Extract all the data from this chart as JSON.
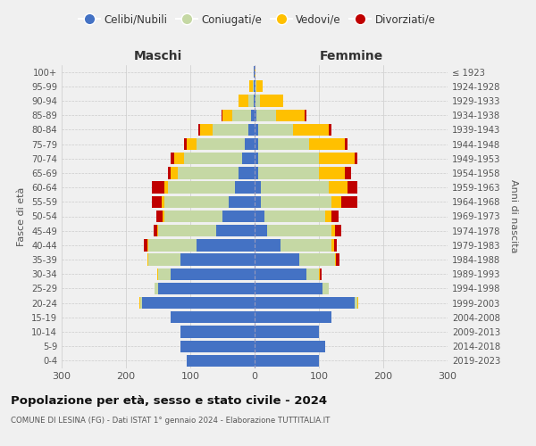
{
  "age_groups": [
    "0-4",
    "5-9",
    "10-14",
    "15-19",
    "20-24",
    "25-29",
    "30-34",
    "35-39",
    "40-44",
    "45-49",
    "50-54",
    "55-59",
    "60-64",
    "65-69",
    "70-74",
    "75-79",
    "80-84",
    "85-89",
    "90-94",
    "95-99",
    "100+"
  ],
  "birth_years": [
    "2019-2023",
    "2014-2018",
    "2009-2013",
    "2004-2008",
    "1999-2003",
    "1994-1998",
    "1989-1993",
    "1984-1988",
    "1979-1983",
    "1974-1978",
    "1969-1973",
    "1964-1968",
    "1959-1963",
    "1954-1958",
    "1949-1953",
    "1944-1948",
    "1939-1943",
    "1934-1938",
    "1929-1933",
    "1924-1928",
    "≤ 1923"
  ],
  "colors": {
    "celibe": "#4472c4",
    "coniugato": "#c5d8a4",
    "vedovo": "#ffc000",
    "divorziato": "#c00000"
  },
  "maschi": {
    "celibe": [
      105,
      115,
      115,
      130,
      175,
      150,
      130,
      115,
      90,
      60,
      50,
      40,
      30,
      25,
      20,
      15,
      10,
      5,
      2,
      1,
      1
    ],
    "coniugato": [
      0,
      0,
      0,
      0,
      3,
      5,
      20,
      50,
      75,
      90,
      90,
      100,
      105,
      95,
      90,
      75,
      55,
      30,
      8,
      2,
      0
    ],
    "vedovo": [
      0,
      0,
      0,
      0,
      1,
      0,
      1,
      1,
      2,
      2,
      3,
      5,
      5,
      10,
      15,
      15,
      20,
      15,
      15,
      5,
      0
    ],
    "divorziato": [
      0,
      0,
      0,
      0,
      0,
      0,
      1,
      1,
      5,
      5,
      10,
      15,
      20,
      5,
      5,
      5,
      2,
      2,
      0,
      0,
      0
    ]
  },
  "femmine": {
    "nubile": [
      100,
      110,
      100,
      120,
      155,
      105,
      80,
      70,
      40,
      20,
      15,
      10,
      10,
      5,
      5,
      5,
      5,
      3,
      1,
      1,
      0
    ],
    "coniugata": [
      0,
      0,
      0,
      0,
      5,
      10,
      20,
      55,
      80,
      100,
      95,
      110,
      105,
      95,
      95,
      80,
      55,
      30,
      8,
      2,
      0
    ],
    "vedova": [
      0,
      0,
      0,
      0,
      1,
      0,
      2,
      2,
      3,
      5,
      10,
      15,
      30,
      40,
      55,
      55,
      55,
      45,
      35,
      10,
      1
    ],
    "divorziata": [
      0,
      0,
      0,
      0,
      0,
      0,
      2,
      5,
      5,
      10,
      10,
      25,
      15,
      10,
      5,
      5,
      5,
      2,
      0,
      0,
      0
    ]
  },
  "xlim": 300,
  "title_main": "Popolazione per età, sesso e stato civile - 2024",
  "title_sub": "COMUNE DI LESINA (FG) - Dati ISTAT 1° gennaio 2024 - Elaborazione TUTTITALIA.IT",
  "ylabel_left": "Fasce di età",
  "ylabel_right": "Anni di nascita",
  "xlabel_left": "Maschi",
  "xlabel_right": "Femmine",
  "legend_labels": [
    "Celibi/Nubili",
    "Coniugati/e",
    "Vedovi/e",
    "Divorziati/e"
  ],
  "background_color": "#f0f0f0"
}
